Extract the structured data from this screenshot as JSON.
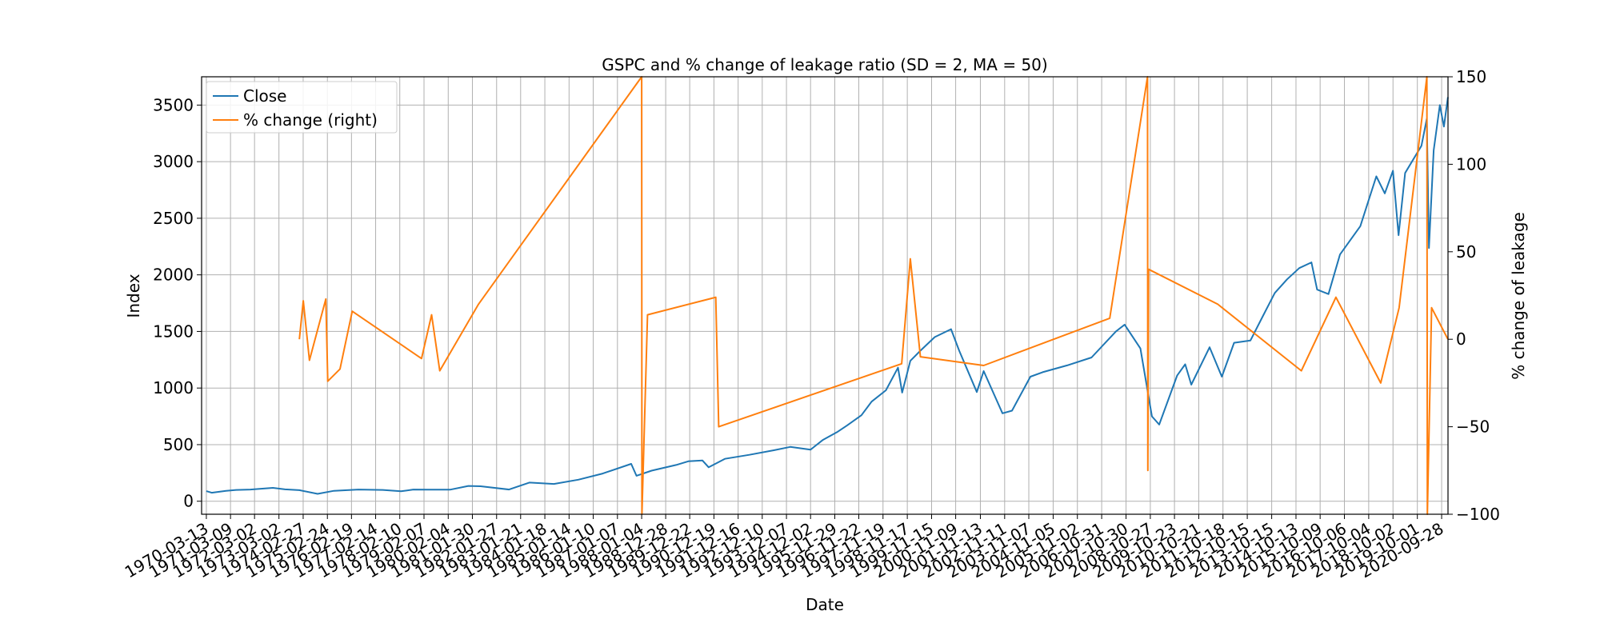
{
  "chart_data": {
    "type": "line",
    "title": "GSPC and % change of leakage ratio (SD = 2, MA = 50)",
    "xlabel": "Date",
    "ylabel_left": "Index",
    "ylabel_right": "% change of leakage",
    "xlim": [
      "1970-01-01",
      "2021-01-01"
    ],
    "ylim_left": [
      -115,
      3750
    ],
    "ylim_right": [
      -100,
      150
    ],
    "yticks_left": [
      0,
      500,
      1000,
      1500,
      2000,
      2500,
      3000,
      3500
    ],
    "yticks_right": [
      -100,
      -50,
      0,
      50,
      100,
      150
    ],
    "xtick_labels": [
      "1970-03-13",
      "1971-03-09",
      "1972-03-02",
      "1973-03-02",
      "1974-02-27",
      "1975-02-24",
      "1976-02-19",
      "1977-02-14",
      "1978-02-10",
      "1979-02-07",
      "1980-02-04",
      "1981-01-30",
      "1982-01-27",
      "1983-01-21",
      "1984-01-18",
      "1985-01-14",
      "1986-01-10",
      "1987-01-07",
      "1988-01-04",
      "1988-12-28",
      "1989-12-22",
      "1990-12-19",
      "1991-12-16",
      "1992-12-10",
      "1993-12-07",
      "1994-12-02",
      "1995-11-29",
      "1996-11-22",
      "1997-11-19",
      "1998-11-17",
      "1999-11-15",
      "2000-11-09",
      "2001-11-13",
      "2002-11-11",
      "2003-11-07",
      "2004-11-05",
      "2005-11-02",
      "2006-10-31",
      "2007-10-30",
      "2008-10-27",
      "2009-10-23",
      "2010-10-21",
      "2011-10-18",
      "2012-10-15",
      "2013-10-15",
      "2014-10-13",
      "2015-10-09",
      "2016-10-06",
      "2017-10-04",
      "2018-10-02",
      "2019-10-01",
      "2020-09-28"
    ],
    "grid": true,
    "legend_position": "top-left",
    "series": [
      {
        "name": "Close",
        "axis": "left",
        "color": "#1f77b4",
        "points": [
          [
            "1970-03-13",
            89
          ],
          [
            "1970-06-01",
            75
          ],
          [
            "1971-01-01",
            92
          ],
          [
            "1971-06-01",
            100
          ],
          [
            "1972-01-01",
            103
          ],
          [
            "1972-12-01",
            118
          ],
          [
            "1973-06-01",
            105
          ],
          [
            "1974-01-01",
            98
          ],
          [
            "1974-10-01",
            65
          ],
          [
            "1975-06-01",
            92
          ],
          [
            "1976-06-01",
            103
          ],
          [
            "1977-06-01",
            100
          ],
          [
            "1978-03-01",
            88
          ],
          [
            "1978-09-01",
            103
          ],
          [
            "1979-06-01",
            102
          ],
          [
            "1980-03-01",
            102
          ],
          [
            "1980-12-01",
            135
          ],
          [
            "1981-06-01",
            132
          ],
          [
            "1982-08-01",
            103
          ],
          [
            "1983-06-01",
            165
          ],
          [
            "1984-06-01",
            153
          ],
          [
            "1985-06-01",
            190
          ],
          [
            "1986-06-01",
            245
          ],
          [
            "1987-08-01",
            330
          ],
          [
            "1987-10-19",
            225
          ],
          [
            "1988-06-01",
            270
          ],
          [
            "1989-06-01",
            320
          ],
          [
            "1989-12-01",
            353
          ],
          [
            "1990-07-01",
            360
          ],
          [
            "1990-10-01",
            300
          ],
          [
            "1991-06-01",
            375
          ],
          [
            "1992-06-01",
            410
          ],
          [
            "1993-06-01",
            450
          ],
          [
            "1994-02-01",
            480
          ],
          [
            "1994-12-01",
            455
          ],
          [
            "1995-06-01",
            540
          ],
          [
            "1996-01-01",
            610
          ],
          [
            "1996-06-01",
            670
          ],
          [
            "1997-01-01",
            760
          ],
          [
            "1997-06-01",
            880
          ],
          [
            "1998-01-01",
            980
          ],
          [
            "1998-07-01",
            1180
          ],
          [
            "1998-09-01",
            960
          ],
          [
            "1999-01-01",
            1240
          ],
          [
            "1999-06-01",
            1330
          ],
          [
            "2000-01-01",
            1450
          ],
          [
            "2000-09-01",
            1520
          ],
          [
            "2001-01-01",
            1330
          ],
          [
            "2001-09-21",
            965
          ],
          [
            "2002-01-01",
            1150
          ],
          [
            "2002-10-09",
            777
          ],
          [
            "2003-03-01",
            800
          ],
          [
            "2003-12-01",
            1100
          ],
          [
            "2004-06-01",
            1140
          ],
          [
            "2005-06-01",
            1200
          ],
          [
            "2006-06-01",
            1270
          ],
          [
            "2007-06-01",
            1500
          ],
          [
            "2007-10-09",
            1560
          ],
          [
            "2008-06-01",
            1350
          ],
          [
            "2008-11-20",
            750
          ],
          [
            "2009-03-09",
            677
          ],
          [
            "2009-12-01",
            1110
          ],
          [
            "2010-04-01",
            1210
          ],
          [
            "2010-07-01",
            1030
          ],
          [
            "2011-04-01",
            1360
          ],
          [
            "2011-10-01",
            1100
          ],
          [
            "2012-04-01",
            1400
          ],
          [
            "2012-12-01",
            1420
          ],
          [
            "2013-06-01",
            1630
          ],
          [
            "2013-12-01",
            1840
          ],
          [
            "2014-06-01",
            1960
          ],
          [
            "2014-12-01",
            2060
          ],
          [
            "2015-06-01",
            2110
          ],
          [
            "2015-08-25",
            1870
          ],
          [
            "2016-02-11",
            1830
          ],
          [
            "2016-08-01",
            2180
          ],
          [
            "2017-06-01",
            2430
          ],
          [
            "2018-01-26",
            2870
          ],
          [
            "2018-06-01",
            2720
          ],
          [
            "2018-10-01",
            2920
          ],
          [
            "2018-12-24",
            2350
          ],
          [
            "2019-04-01",
            2900
          ],
          [
            "2019-12-01",
            3140
          ],
          [
            "2020-02-19",
            3380
          ],
          [
            "2020-03-23",
            2237
          ],
          [
            "2020-06-01",
            3100
          ],
          [
            "2020-09-01",
            3500
          ],
          [
            "2020-11-01",
            3310
          ],
          [
            "2020-12-31",
            3570
          ]
        ]
      },
      {
        "name": "% change (right)",
        "axis": "right",
        "color": "#ff7f0e",
        "points": [
          [
            "1974-01-01",
            0
          ],
          [
            "1974-03-01",
            22
          ],
          [
            "1974-06-01",
            -12
          ],
          [
            "1975-02-01",
            23
          ],
          [
            "1975-03-01",
            -24
          ],
          [
            "1975-09-01",
            -17
          ],
          [
            "1976-03-01",
            16
          ],
          [
            "1979-01-01",
            -11
          ],
          [
            "1979-06-01",
            14
          ],
          [
            "1979-10-01",
            -18
          ],
          [
            "1981-05-01",
            20
          ],
          [
            "1988-01-04",
            150
          ],
          [
            "1988-01-08",
            -100
          ],
          [
            "1988-04-01",
            14
          ],
          [
            "1991-01-15",
            24
          ],
          [
            "1991-03-01",
            -50
          ],
          [
            "1998-08-25",
            -14
          ],
          [
            "1999-01-01",
            46
          ],
          [
            "1999-06-01",
            -10
          ],
          [
            "2002-01-01",
            -15
          ],
          [
            "2007-03-01",
            12
          ],
          [
            "2008-09-15",
            150
          ],
          [
            "2008-09-20",
            -75
          ],
          [
            "2008-10-01",
            40
          ],
          [
            "2011-08-01",
            20
          ],
          [
            "2015-01-01",
            -18
          ],
          [
            "2016-06-01",
            24
          ],
          [
            "2018-04-01",
            -25
          ],
          [
            "2019-01-01",
            18
          ],
          [
            "2020-02-20",
            150
          ],
          [
            "2020-02-28",
            -100
          ],
          [
            "2020-05-01",
            18
          ],
          [
            "2020-12-31",
            0
          ]
        ]
      }
    ]
  }
}
